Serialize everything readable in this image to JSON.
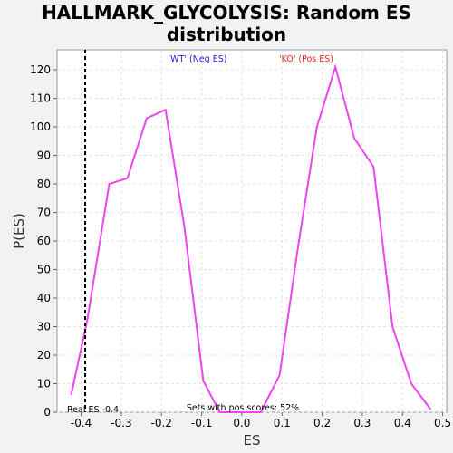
{
  "chart_data": {
    "type": "line",
    "title_lines": [
      "HALLMARK_GLYCOLYSIS: Random ES",
      "distribution"
    ],
    "xlabel": "ES",
    "ylabel": "P(ES)",
    "xlim": [
      -0.46,
      0.51
    ],
    "ylim": [
      0,
      127
    ],
    "xticks": [
      -0.4,
      -0.3,
      -0.2,
      -0.1,
      0.0,
      0.1,
      0.2,
      0.3,
      0.4,
      0.5
    ],
    "xtick_labels": [
      "-0.4",
      "-0.3",
      "-0.2",
      "-0.1",
      "0.0",
      "0.1",
      "0.2",
      "0.3",
      "0.4",
      "0.5"
    ],
    "yticks": [
      0,
      10,
      20,
      30,
      40,
      50,
      60,
      70,
      80,
      90,
      100,
      110,
      120
    ],
    "grid": true,
    "line_color": "#ee44ee",
    "x": [
      -0.425,
      -0.385,
      -0.33,
      -0.285,
      -0.237,
      -0.19,
      -0.143,
      -0.096,
      -0.055,
      -0.003,
      0.047,
      0.094,
      0.14,
      0.187,
      0.233,
      0.28,
      0.328,
      0.375,
      0.422,
      0.47
    ],
    "y": [
      6,
      32,
      80,
      82,
      103,
      106,
      65,
      11,
      0,
      0,
      0,
      13,
      58,
      100,
      121,
      96,
      86,
      30,
      10,
      1
    ],
    "real_es": -0.39,
    "real_es_label": "Real ES -0.4",
    "pos_sets_label": "Sets with pos scores: 52%",
    "legend": [
      {
        "label": "'WT' (Neg ES)",
        "color": "#2222cc"
      },
      {
        "label": "'KO' (Pos ES)",
        "color": "#ee2222"
      }
    ]
  }
}
